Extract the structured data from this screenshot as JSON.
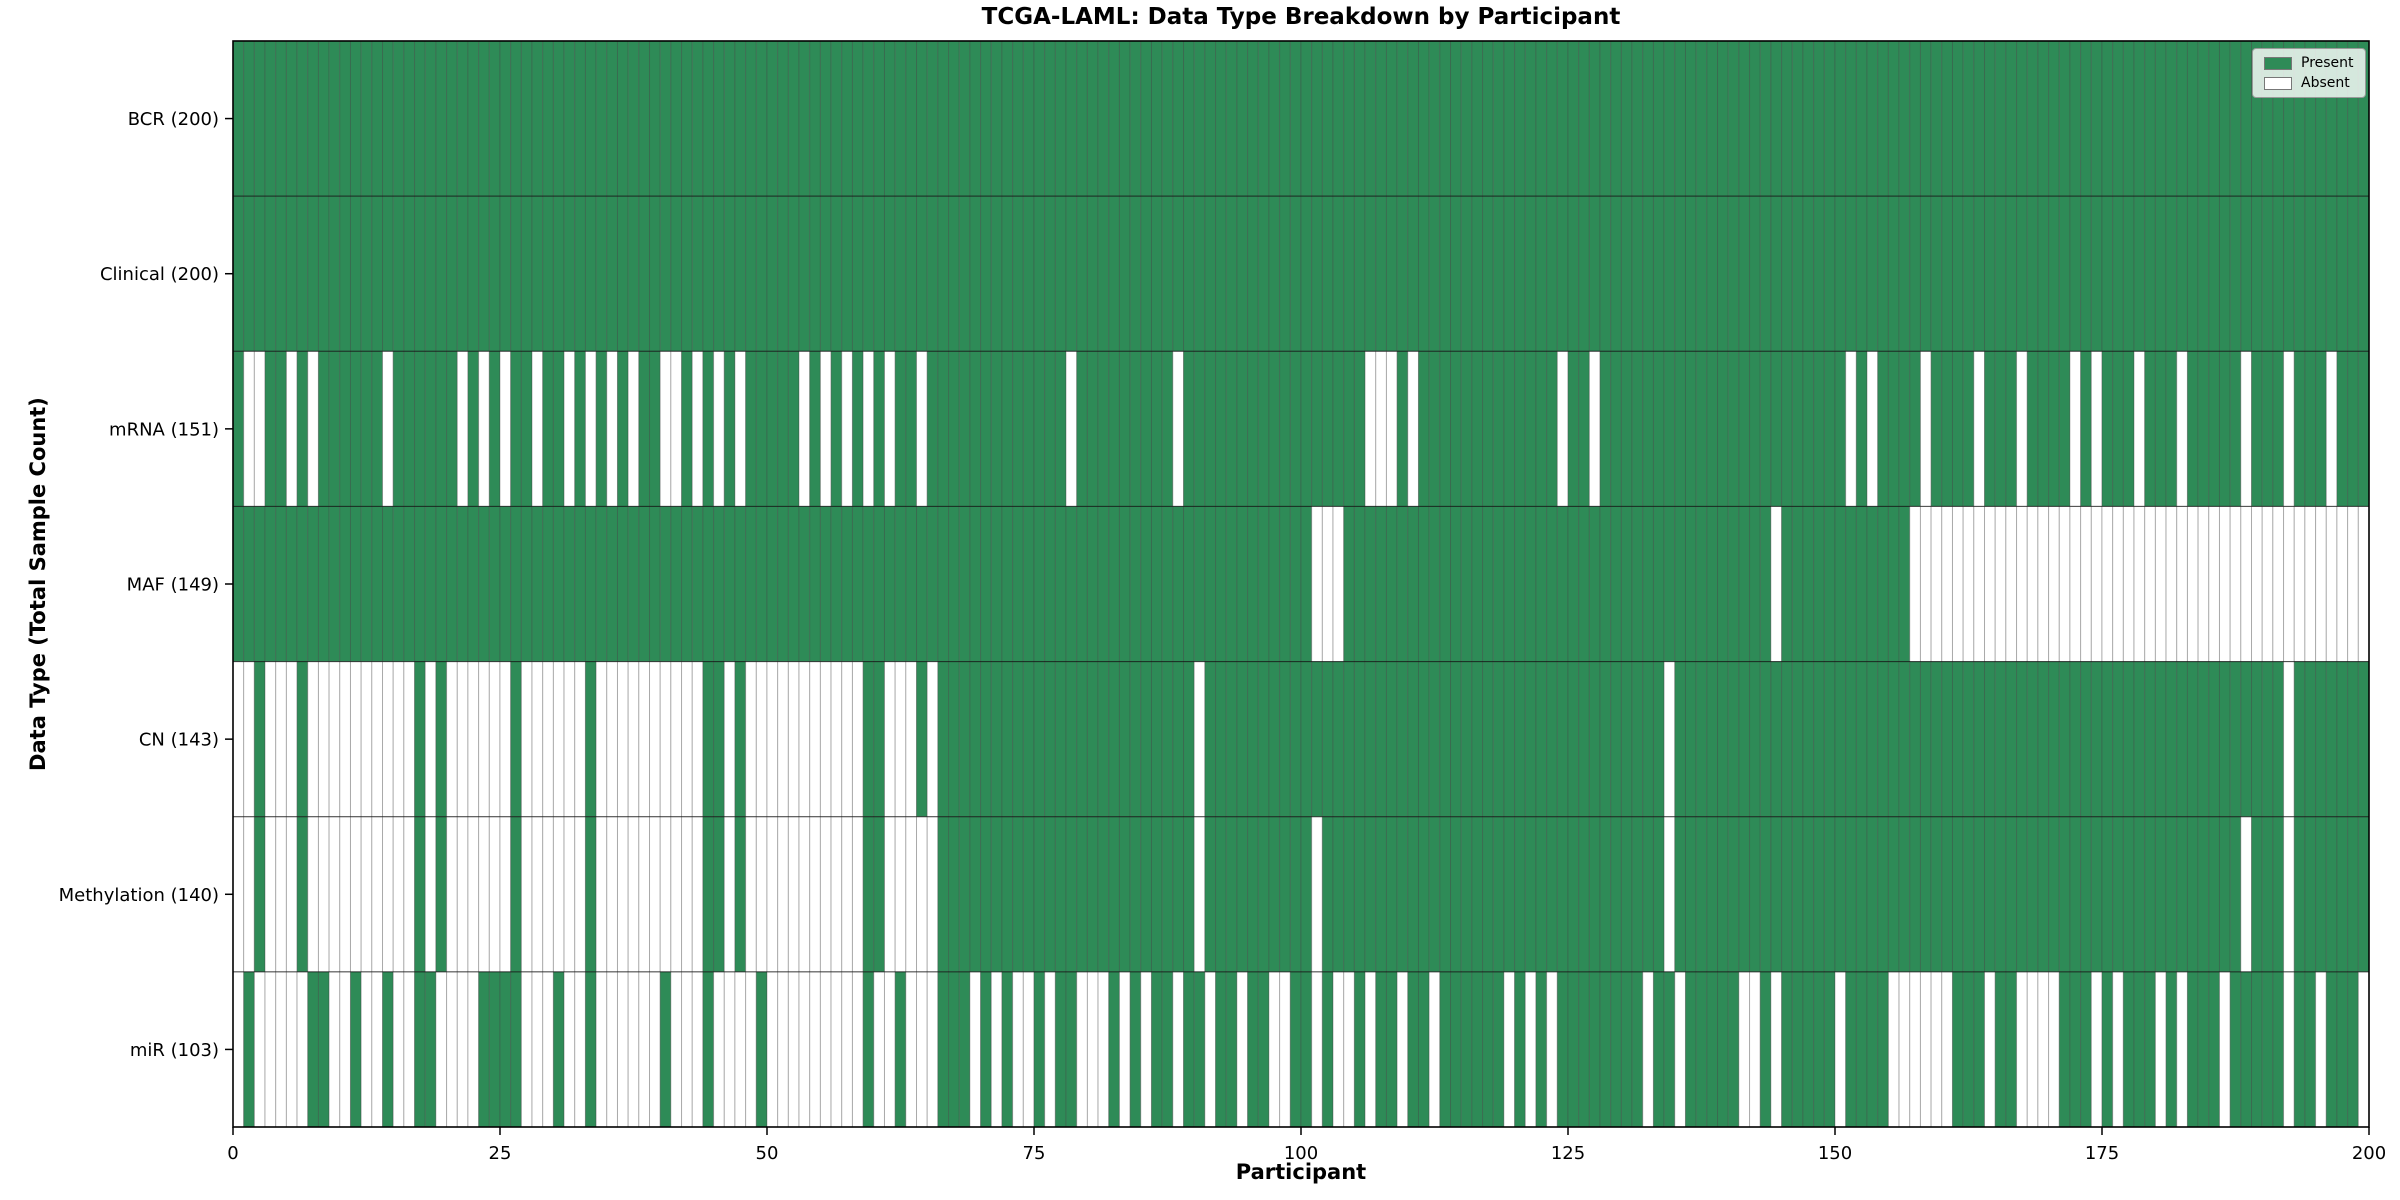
{
  "chart_data": {
    "type": "heatmap",
    "title": "TCGA-LAML: Data Type Breakdown by Participant",
    "xlabel": "Participant",
    "ylabel": "Data Type (Total Sample Count)",
    "x_range": [
      0,
      200
    ],
    "n_participants": 200,
    "xticks": [
      0,
      25,
      50,
      75,
      100,
      125,
      150,
      175,
      200
    ],
    "grid": false,
    "legend": {
      "position": "upper-right",
      "entries": [
        {
          "label": "Present",
          "color": "#2e8b57"
        },
        {
          "label": "Absent",
          "color": "#ffffff"
        }
      ]
    },
    "colors": {
      "present": "#2e8b57",
      "absent": "#ffffff",
      "cell_border": "#444444",
      "axis": "#000000"
    },
    "rows": [
      {
        "name": "BCR",
        "label": "BCR (200)",
        "total_samples": 200,
        "presence": "11111111111111111111111111111111111111111111111111111111111111111111111111111111111111111111111111111111111111111111111111111111111111111111111111111111111111111111111111111111111111111111111111111111"
      },
      {
        "name": "Clinical",
        "label": "Clinical (200)",
        "total_samples": 200,
        "presence": "11111111111111111111111111111111111111111111111111111111111111111111111111111111111111111111111111111111111111111111111111111111111111111111111111111111111111111111111111111111111111111111111111111111"
      },
      {
        "name": "mRNA",
        "label": "mRNA (151)",
        "total_samples": 151,
        "presence": "10011010111111011111101010110110101010110010101011111010101010110111111111111101111111110111111111111111110001011111111111110110111111111111111111111110101111011110111011110101110111011111011101110111"
      },
      {
        "name": "MAF",
        "label": "MAF (149)",
        "total_samples": 149,
        "presence": "11111111111111111111111111111111111111111111111111111111111111111111111111111111111111111111111111111000111111111111111111111111111111111111111101111111111110000000000000000000000000000000000000000000"
      },
      {
        "name": "CN",
        "label": "CN (143)",
        "total_samples": 143,
        "presence": "00100010000000000101000000100000010000000000110100000000000110001011111111111111111111111101111111111111111111111111111111111111111111011111111111111111111111111111111111111111111111111111111101111111"
      },
      {
        "name": "Methylation",
        "label": "Methylation (140)",
        "total_samples": 140,
        "presence": "00100010000000000101000000100000010000000000110100000000000110000011111111111111111111111101111111111011111111111111111111111111111111011111111111111111111111111111111111111111111111111111011101111111"
      },
      {
        "name": "miR",
        "label": "miR (103)",
        "total_samples": 103,
        "presence": "01000001100100100110000111100010010000001000100001000000000100100011101010010110001010110110110110011010010110110111111010101111111101101111100101111101111000000111011000011101011101011101111101101110"
      }
    ]
  }
}
